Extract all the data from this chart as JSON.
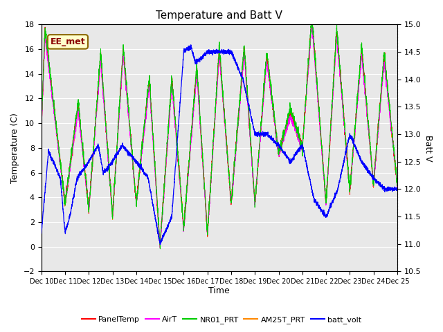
{
  "title": "Temperature and Batt V",
  "xlabel": "Time",
  "ylabel_left": "Temperature (C)",
  "ylabel_right": "Batt V",
  "ylim_left": [
    -2,
    18
  ],
  "ylim_right": [
    10.5,
    15.0
  ],
  "annotation": "EE_met",
  "bg_color": "#e8e8e8",
  "panel_temp_color": "#ff0000",
  "air_temp_color": "#ff00ff",
  "nr01_prt_color": "#00cc00",
  "am25t_prt_color": "#ff8800",
  "batt_volt_color": "#0000ff",
  "x_tick_labels": [
    "Dec 10",
    "Dec 11",
    "Dec 12",
    "Dec 13",
    "Dec 14",
    "Dec 15",
    "Dec 16",
    "Dec 17",
    "Dec 18",
    "Dec 19",
    "Dec 20",
    "Dec 21",
    "Dec 22",
    "Dec 23",
    "Dec 24",
    "Dec 25"
  ],
  "yticks_left": [
    -2,
    0,
    2,
    4,
    6,
    8,
    10,
    12,
    14,
    16,
    18
  ],
  "yticks_right": [
    10.5,
    11.0,
    11.5,
    12.0,
    12.5,
    13.0,
    13.5,
    14.0,
    14.5,
    15.0
  ],
  "legend_labels": [
    "PanelTemp",
    "AirT",
    "NR01_PRT",
    "AM25T_PRT",
    "batt_volt"
  ]
}
